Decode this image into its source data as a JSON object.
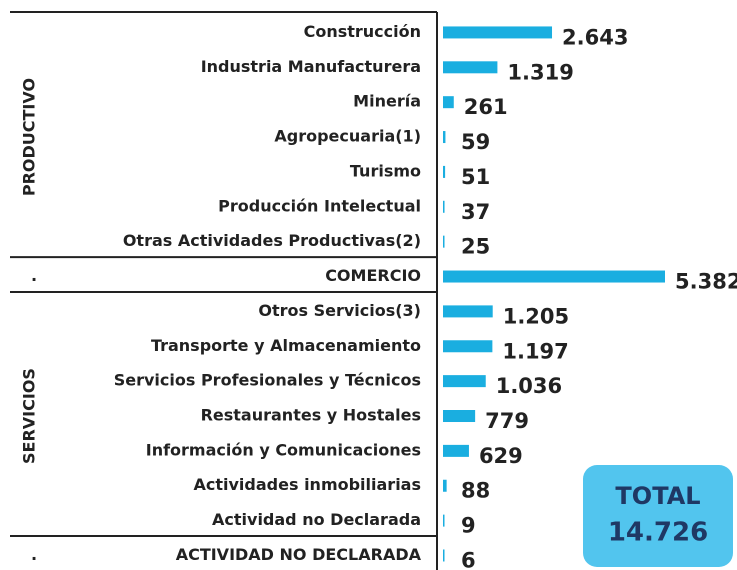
{
  "chart_data": {
    "type": "bar",
    "color": "#1aaee0",
    "groups": [
      {
        "name": "PRODUCTIVO",
        "categories": [
          "Construcción",
          "Industria Manufacturera",
          "Minería",
          "Agropecuaria(1)",
          "Turismo",
          "Producción Intelectual",
          "Otras Actividades Productivas(2)"
        ],
        "values": [
          2643,
          1319,
          261,
          59,
          51,
          37,
          25
        ],
        "value_labels": [
          "2.643",
          "1.319",
          "261",
          "59",
          "51",
          "37",
          "25"
        ]
      },
      {
        "name": ".",
        "categories": [
          "COMERCIO"
        ],
        "values": [
          5382
        ],
        "value_labels": [
          "5.382"
        ]
      },
      {
        "name": "SERVICIOS",
        "categories": [
          "Otros Servicios(3)",
          "Transporte y Almacenamiento",
          "Servicios Profesionales y Técnicos",
          "Restaurantes y Hostales",
          "Información y Comunicaciones",
          "Actividades inmobiliarias",
          "Actividad no Declarada"
        ],
        "values": [
          1205,
          1197,
          1036,
          779,
          629,
          88,
          9
        ],
        "value_labels": [
          "1.205",
          "1.197",
          "1.036",
          "779",
          "629",
          "88",
          "9"
        ]
      },
      {
        "name": ".",
        "categories": [
          "ACTIVIDAD NO DECLARADA"
        ],
        "values": [
          6
        ],
        "value_labels": [
          "6"
        ]
      }
    ],
    "total": {
      "label": "TOTAL",
      "value": 14726,
      "value_label": "14.726"
    }
  }
}
